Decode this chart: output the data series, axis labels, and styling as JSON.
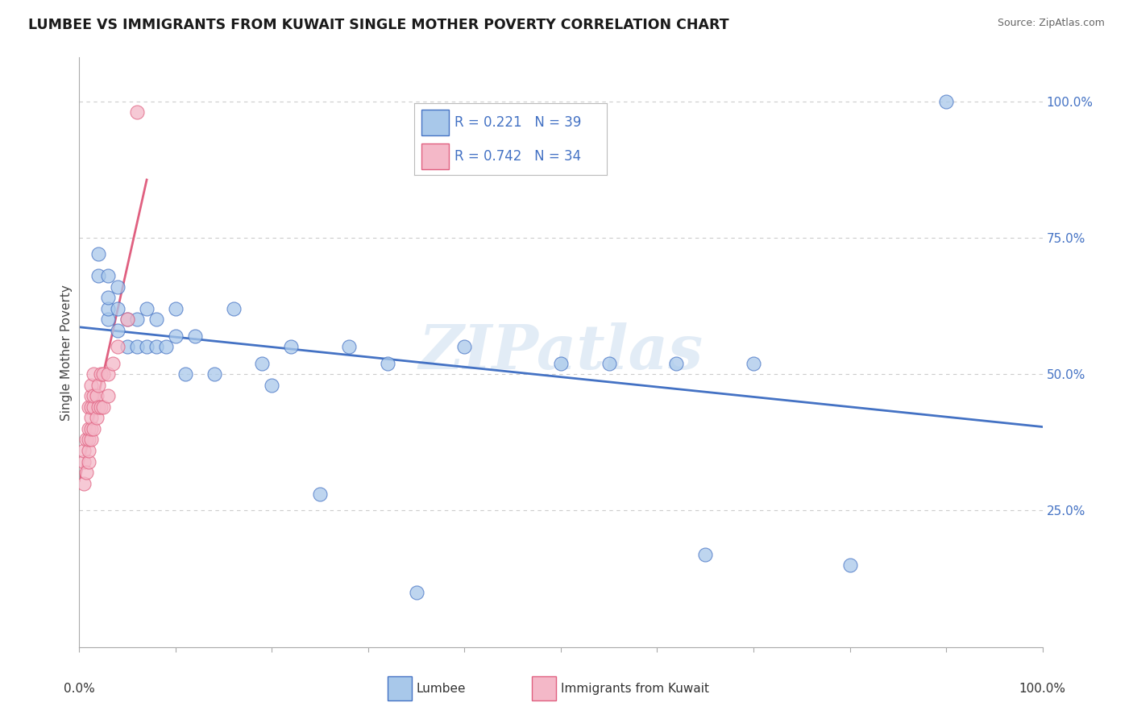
{
  "title": "LUMBEE VS IMMIGRANTS FROM KUWAIT SINGLE MOTHER POVERTY CORRELATION CHART",
  "source": "Source: ZipAtlas.com",
  "ylabel": "Single Mother Poverty",
  "legend_label1": "Lumbee",
  "legend_label2": "Immigrants from Kuwait",
  "r1": 0.221,
  "n1": 39,
  "r2": 0.742,
  "n2": 34,
  "watermark": "ZIPatlas",
  "lumbee_x": [
    0.02,
    0.02,
    0.03,
    0.03,
    0.03,
    0.03,
    0.04,
    0.04,
    0.04,
    0.05,
    0.05,
    0.06,
    0.06,
    0.07,
    0.07,
    0.08,
    0.08,
    0.09,
    0.1,
    0.1,
    0.11,
    0.12,
    0.14,
    0.16,
    0.19,
    0.2,
    0.22,
    0.25,
    0.28,
    0.32,
    0.35,
    0.4,
    0.5,
    0.55,
    0.62,
    0.65,
    0.7,
    0.8,
    0.9
  ],
  "lumbee_y": [
    0.68,
    0.72,
    0.6,
    0.62,
    0.64,
    0.68,
    0.58,
    0.62,
    0.66,
    0.55,
    0.6,
    0.55,
    0.6,
    0.55,
    0.62,
    0.55,
    0.6,
    0.55,
    0.57,
    0.62,
    0.5,
    0.57,
    0.5,
    0.62,
    0.52,
    0.48,
    0.55,
    0.28,
    0.55,
    0.52,
    0.1,
    0.55,
    0.52,
    0.52,
    0.52,
    0.17,
    0.52,
    0.15,
    1.0
  ],
  "kuwait_x": [
    0.005,
    0.005,
    0.005,
    0.007,
    0.007,
    0.01,
    0.01,
    0.01,
    0.01,
    0.01,
    0.012,
    0.012,
    0.012,
    0.012,
    0.012,
    0.012,
    0.015,
    0.015,
    0.015,
    0.015,
    0.018,
    0.018,
    0.02,
    0.02,
    0.022,
    0.022,
    0.025,
    0.025,
    0.03,
    0.03,
    0.035,
    0.04,
    0.05,
    0.06
  ],
  "kuwait_y": [
    0.3,
    0.34,
    0.36,
    0.32,
    0.38,
    0.34,
    0.36,
    0.38,
    0.4,
    0.44,
    0.38,
    0.4,
    0.42,
    0.44,
    0.46,
    0.48,
    0.4,
    0.44,
    0.46,
    0.5,
    0.42,
    0.46,
    0.44,
    0.48,
    0.44,
    0.5,
    0.44,
    0.5,
    0.46,
    0.5,
    0.52,
    0.55,
    0.6,
    0.98
  ],
  "color_lumbee": "#a8c8ea",
  "color_kuwait": "#f4b8c8",
  "color_line_lumbee": "#4472c4",
  "color_line_kuwait": "#e06080",
  "color_text_blue": "#4472c4",
  "background_color": "#ffffff",
  "grid_color": "#cccccc",
  "ytick_values": [
    0.25,
    0.5,
    0.75,
    1.0
  ],
  "ytick_labels": [
    "25.0%",
    "50.0%",
    "75.0%",
    "100.0%"
  ]
}
